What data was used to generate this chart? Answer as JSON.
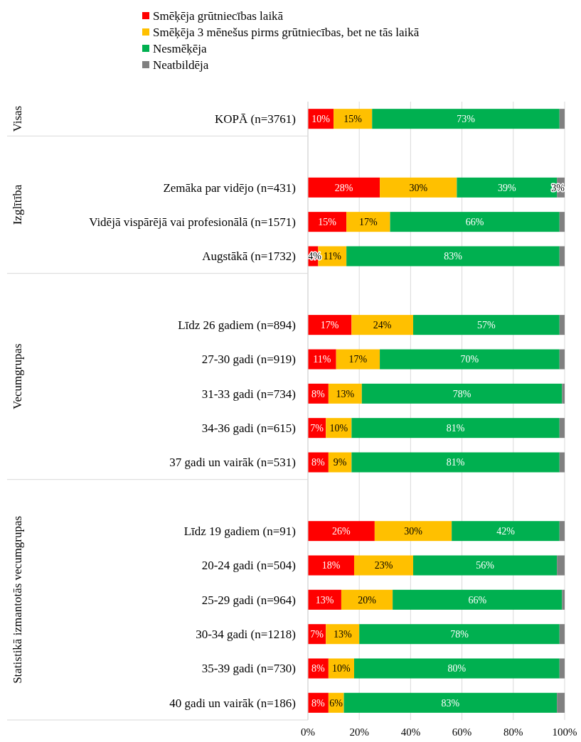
{
  "chart_data": {
    "type": "bar",
    "orientation": "horizontal",
    "stacked": true,
    "categories": [
      "KOPĀ (n=3761)",
      null,
      "Zemāka par vidējo (n=431)",
      "Vidējā vispārējā vai profesionālā (n=1571)",
      "Augstākā (n=1732)",
      null,
      "Līdz 26 gadiem (n=894)",
      "27-30 gadi (n=919)",
      "31-33 gadi (n=734)",
      "34-36 gadi (n=615)",
      "37 gadi un vairāk (n=531)",
      null,
      "Līdz 19 gadiem (n=91)",
      "20-24 gadi (n=504)",
      "25-29 gadi (n=964)",
      "30-34 gadi (n=1218)",
      "35-39 gadi (n=730)",
      "40 gadi un vairāk (n=186)"
    ],
    "series": [
      {
        "name": "Smēķēja grūtniecības laikā",
        "color": "#ff0000",
        "values": [
          10,
          null,
          28,
          15,
          4,
          null,
          17,
          11,
          8,
          7,
          8,
          null,
          26,
          18,
          13,
          7,
          8,
          8
        ],
        "value_labels": [
          "10%",
          null,
          "28%",
          "15%",
          "4%",
          null,
          "17%",
          "11%",
          "8%",
          "7%",
          "8%",
          null,
          "26%",
          "18%",
          "13%",
          "7%",
          "8%",
          "8%"
        ]
      },
      {
        "name": "Smēķēja 3 mēnešus pirms grūtniecības, bet ne tās laikā",
        "color": "#ffc000",
        "values": [
          15,
          null,
          30,
          17,
          11,
          null,
          24,
          17,
          13,
          10,
          9,
          null,
          30,
          23,
          20,
          13,
          10,
          6
        ],
        "value_labels": [
          "15%",
          null,
          "30%",
          "17%",
          "11%",
          null,
          "24%",
          "17%",
          "13%",
          "10%",
          "9%",
          null,
          "30%",
          "23%",
          "20%",
          "13%",
          "10%",
          "6%"
        ]
      },
      {
        "name": "Nesmēķēja",
        "color": "#00b050",
        "values": [
          73,
          null,
          39,
          66,
          83,
          null,
          57,
          70,
          78,
          81,
          81,
          null,
          42,
          56,
          66,
          78,
          80,
          83
        ],
        "value_labels": [
          "73%",
          null,
          "39%",
          "66%",
          "83%",
          null,
          "57%",
          "70%",
          "78%",
          "81%",
          "81%",
          null,
          "42%",
          "56%",
          "66%",
          "78%",
          "80%",
          "83%"
        ]
      },
      {
        "name": "Neatbildēja",
        "color": "#808080",
        "values": [
          2,
          null,
          3,
          2,
          2,
          null,
          2,
          2,
          1,
          2,
          2,
          null,
          2,
          3,
          1,
          2,
          2,
          3
        ],
        "value_labels": [
          null,
          null,
          "3%",
          null,
          null,
          null,
          null,
          null,
          null,
          null,
          null,
          null,
          null,
          null,
          null,
          null,
          null,
          null
        ]
      }
    ],
    "annotations": [
      "Visas",
      "Izglītība",
      "Vecumgrupas",
      "Statistikā izmantotās vecumgrupas"
    ],
    "xlim": [
      0,
      100
    ],
    "xticks": [
      {
        "value": 0,
        "label": "0%"
      },
      {
        "value": 20,
        "label": "20%"
      },
      {
        "value": 40,
        "label": "40%"
      },
      {
        "value": 60,
        "label": "60%"
      },
      {
        "value": 80,
        "label": "80%"
      },
      {
        "value": 100,
        "label": "100%"
      }
    ],
    "grid": "x",
    "legend": "top"
  }
}
